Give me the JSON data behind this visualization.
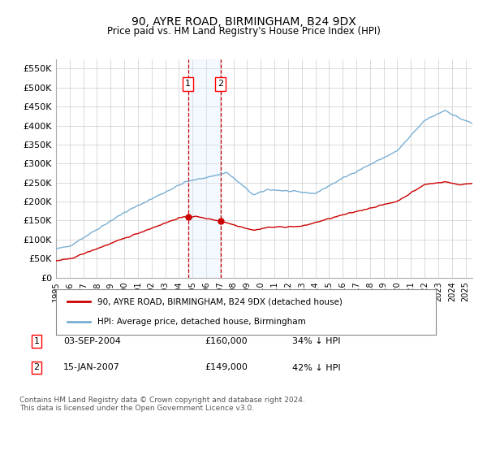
{
  "title": "90, AYRE ROAD, BIRMINGHAM, B24 9DX",
  "subtitle": "Price paid vs. HM Land Registry's House Price Index (HPI)",
  "red_label": "90, AYRE ROAD, BIRMINGHAM, B24 9DX (detached house)",
  "blue_label": "HPI: Average price, detached house, Birmingham",
  "annotation1": {
    "num": "1",
    "date": "03-SEP-2004",
    "price": "£160,000",
    "hpi": "34% ↓ HPI"
  },
  "annotation2": {
    "num": "2",
    "date": "15-JAN-2007",
    "price": "£149,000",
    "hpi": "42% ↓ HPI"
  },
  "footnote": "Contains HM Land Registry data © Crown copyright and database right 2024.\nThis data is licensed under the Open Government Licence v3.0.",
  "sale1_x": 2004.67,
  "sale2_x": 2007.04,
  "sale1_y": 160000,
  "sale2_y": 149000,
  "red_color": "#cc0000",
  "blue_color": "#7aafd4",
  "shade_color": "#ddeeff",
  "vline_color": "#cc0000",
  "grid_color": "#cccccc",
  "bg_color": "#ffffff",
  "ylim": [
    0,
    575000
  ],
  "xlim_start": 1995.0,
  "xlim_end": 2025.5,
  "yticks": [
    0,
    50000,
    100000,
    150000,
    200000,
    250000,
    300000,
    350000,
    400000,
    450000,
    500000,
    550000
  ]
}
